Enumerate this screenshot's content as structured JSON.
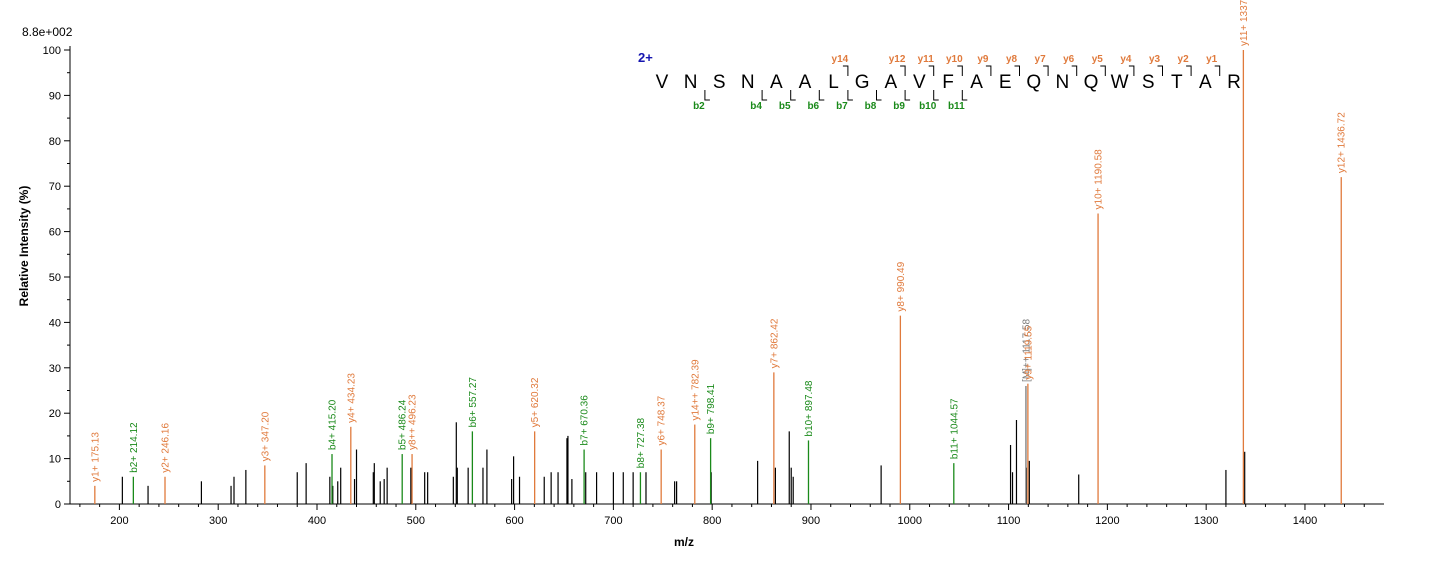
{
  "chart_data": {
    "type": "bar",
    "title": "",
    "intensity_scale_label": "8.8e+002",
    "xlabel": "m/z",
    "ylabel": "Relative   Intensity (%)",
    "xlim": [
      150,
      1480
    ],
    "ylim": [
      0,
      100
    ],
    "x_ticks": [
      200,
      300,
      400,
      500,
      600,
      700,
      800,
      900,
      1000,
      1100,
      1200,
      1300,
      1400
    ],
    "y_ticks": [
      0,
      10,
      20,
      30,
      40,
      50,
      60,
      70,
      80,
      90,
      100
    ],
    "colors": {
      "y_ion": "#e07a3c",
      "b_ion": "#1a8a1a",
      "other_ion": "#7a7a7a",
      "unassigned": "#000000",
      "charge": "#1515b0",
      "axis": "#000000"
    },
    "annotated_peaks": [
      {
        "mz": 175.13,
        "intensity": 4,
        "label": "y1+ 175.13",
        "ion": "y"
      },
      {
        "mz": 214.12,
        "intensity": 6,
        "label": "b2+ 214.12",
        "ion": "b"
      },
      {
        "mz": 246.16,
        "intensity": 6,
        "label": "y2+ 246.16",
        "ion": "y"
      },
      {
        "mz": 347.2,
        "intensity": 8.5,
        "label": "y3+ 347.20",
        "ion": "y"
      },
      {
        "mz": 415.2,
        "intensity": 11,
        "label": "b4+ 415.20",
        "ion": "b"
      },
      {
        "mz": 434.23,
        "intensity": 17,
        "label": "y4+ 434.23",
        "ion": "y"
      },
      {
        "mz": 486.24,
        "intensity": 11,
        "label": "b5+ 486.24",
        "ion": "b"
      },
      {
        "mz": 496.23,
        "intensity": 11,
        "label": "y8++ 496.23",
        "ion": "y"
      },
      {
        "mz": 557.27,
        "intensity": 16,
        "label": "b6+ 557.27",
        "ion": "b"
      },
      {
        "mz": 620.32,
        "intensity": 16,
        "label": "y5+ 620.32",
        "ion": "y"
      },
      {
        "mz": 670.36,
        "intensity": 12,
        "label": "b7+ 670.36",
        "ion": "b"
      },
      {
        "mz": 727.38,
        "intensity": 7,
        "label": "b8+ 727.38",
        "ion": "b"
      },
      {
        "mz": 748.37,
        "intensity": 12,
        "label": "y6+ 748.37",
        "ion": "y"
      },
      {
        "mz": 782.39,
        "intensity": 17.5,
        "label": "y14++ 782.39",
        "ion": "y"
      },
      {
        "mz": 798.41,
        "intensity": 14.5,
        "label": "b9+ 798.41",
        "ion": "b"
      },
      {
        "mz": 862.42,
        "intensity": 29,
        "label": "y7+ 862.42",
        "ion": "y"
      },
      {
        "mz": 897.48,
        "intensity": 14,
        "label": "b10+ 897.48",
        "ion": "b"
      },
      {
        "mz": 990.49,
        "intensity": 41.5,
        "label": "y8+ 990.49",
        "ion": "y"
      },
      {
        "mz": 1044.57,
        "intensity": 9,
        "label": "b11+ 1044.57",
        "ion": "b"
      },
      {
        "mz": 1117.58,
        "intensity": 26,
        "label": "[M]++ 1117.58",
        "ion": "other"
      },
      {
        "mz": 1119.55,
        "intensity": 26.5,
        "label": "y9+ 1119.55",
        "ion": "y"
      },
      {
        "mz": 1190.58,
        "intensity": 64,
        "label": "y10+ 1190.58",
        "ion": "y"
      },
      {
        "mz": 1337.66,
        "intensity": 100,
        "label": "y11+ 1337.66",
        "ion": "y"
      },
      {
        "mz": 1436.72,
        "intensity": 72,
        "label": "y12+ 1436.72",
        "ion": "y"
      }
    ],
    "unassigned_peaks": [
      [
        203,
        6
      ],
      [
        229,
        4
      ],
      [
        283,
        5
      ],
      [
        313,
        4
      ],
      [
        316,
        6
      ],
      [
        328,
        7.5
      ],
      [
        380,
        7
      ],
      [
        389,
        9
      ],
      [
        413,
        6
      ],
      [
        416,
        4
      ],
      [
        421,
        5
      ],
      [
        424,
        8
      ],
      [
        438,
        5.5
      ],
      [
        440,
        12
      ],
      [
        457,
        7
      ],
      [
        458,
        9
      ],
      [
        464,
        5
      ],
      [
        468,
        5.5
      ],
      [
        471,
        8
      ],
      [
        495,
        8
      ],
      [
        509,
        7
      ],
      [
        512,
        7
      ],
      [
        538,
        6
      ],
      [
        541,
        18
      ],
      [
        542,
        8
      ],
      [
        553,
        8
      ],
      [
        568,
        8
      ],
      [
        572,
        12
      ],
      [
        597,
        5.5
      ],
      [
        599,
        10.5
      ],
      [
        605,
        6
      ],
      [
        630,
        6
      ],
      [
        637,
        7
      ],
      [
        644,
        7
      ],
      [
        653,
        14.5
      ],
      [
        654,
        15
      ],
      [
        658,
        5.5
      ],
      [
        672,
        7
      ],
      [
        683,
        7
      ],
      [
        700,
        7
      ],
      [
        710,
        7
      ],
      [
        720,
        7
      ],
      [
        733,
        7
      ],
      [
        762,
        5
      ],
      [
        764,
        5
      ],
      [
        799,
        7
      ],
      [
        846,
        9.5
      ],
      [
        864,
        8
      ],
      [
        878,
        16
      ],
      [
        880,
        8
      ],
      [
        882,
        6
      ],
      [
        971,
        8.5
      ],
      [
        1102,
        13
      ],
      [
        1104,
        7
      ],
      [
        1108,
        18.5
      ],
      [
        1118,
        8
      ],
      [
        1121,
        9.5
      ],
      [
        1171,
        6.5
      ],
      [
        1320,
        7.5
      ],
      [
        1339,
        11.5
      ]
    ],
    "sequence": {
      "charge_label": "2+",
      "residues": [
        "V",
        "N",
        "S",
        "N",
        "A",
        "A",
        "L",
        "G",
        "A",
        "V",
        "F",
        "A",
        "E",
        "Q",
        "N",
        "Q",
        "W",
        "S",
        "T",
        "A",
        "R"
      ],
      "y_fragments": [
        {
          "label": "y14",
          "after": 7
        },
        {
          "label": "y12",
          "after": 9
        },
        {
          "label": "y11",
          "after": 10
        },
        {
          "label": "y10",
          "after": 11
        },
        {
          "label": "y9",
          "after": 12
        },
        {
          "label": "y8",
          "after": 13
        },
        {
          "label": "y7",
          "after": 14
        },
        {
          "label": "y6",
          "after": 15
        },
        {
          "label": "y5",
          "after": 16
        },
        {
          "label": "y4",
          "after": 17
        },
        {
          "label": "y3",
          "after": 18
        },
        {
          "label": "y2",
          "after": 19
        },
        {
          "label": "y1",
          "after": 20
        }
      ],
      "b_fragments": [
        {
          "label": "b2",
          "after": 2
        },
        {
          "label": "b4",
          "after": 4
        },
        {
          "label": "b5",
          "after": 5
        },
        {
          "label": "b6",
          "after": 6
        },
        {
          "label": "b7",
          "after": 7
        },
        {
          "label": "b8",
          "after": 8
        },
        {
          "label": "b9",
          "after": 9
        },
        {
          "label": "b10",
          "after": 10
        },
        {
          "label": "b11",
          "after": 11
        }
      ]
    }
  }
}
